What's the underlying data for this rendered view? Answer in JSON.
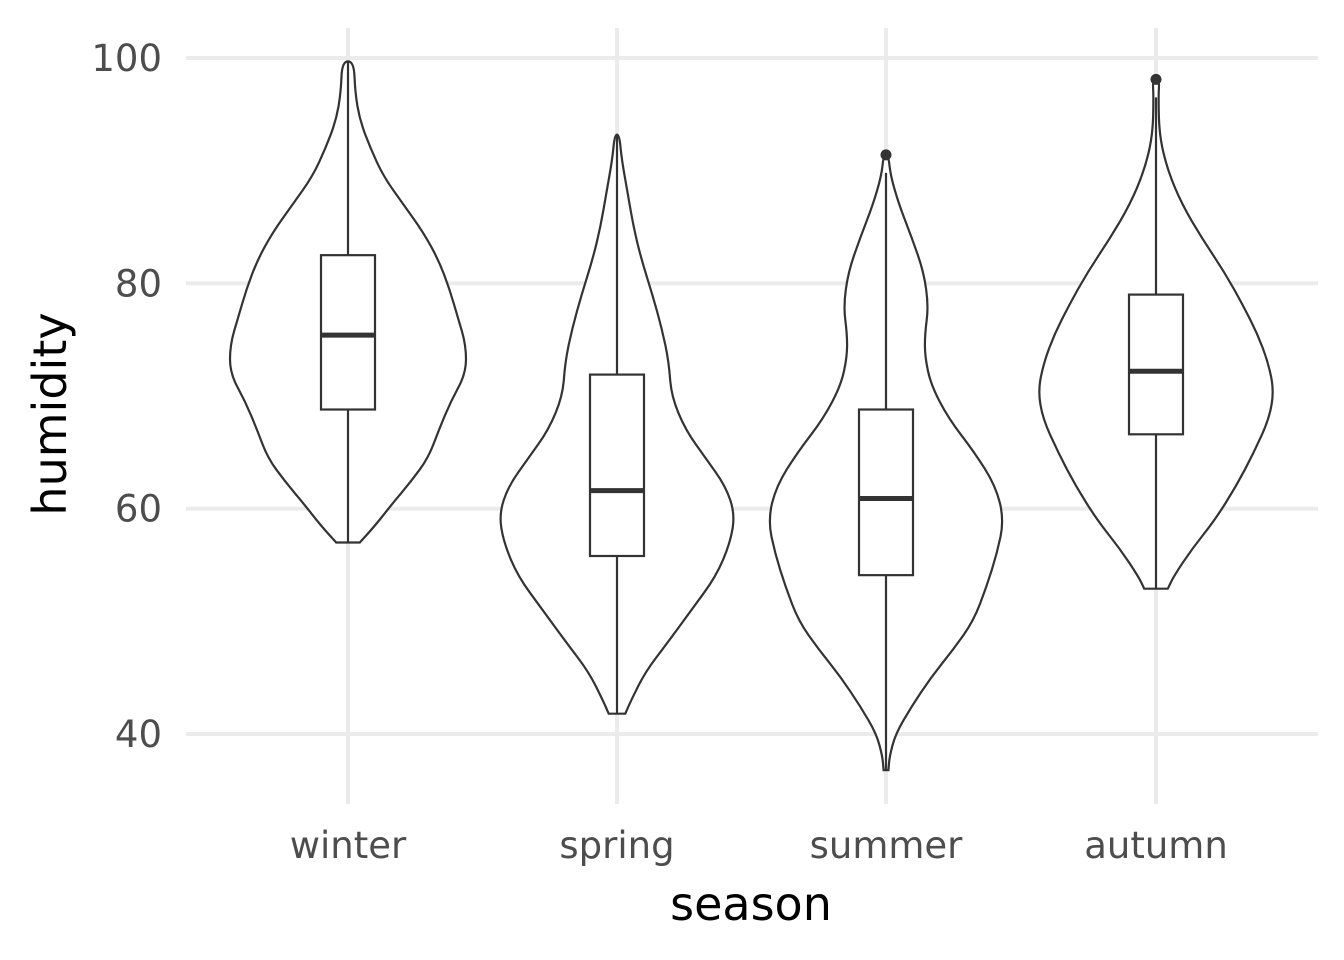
{
  "chart_data": {
    "type": "violin",
    "xlabel": "season",
    "ylabel": "humidity",
    "categories": [
      "winter",
      "spring",
      "summer",
      "autumn"
    ],
    "ylim": [
      33.8,
      102.0
    ],
    "yticks": [
      40,
      60,
      80,
      100
    ],
    "grid": true,
    "legend": "none",
    "boxes": [
      {
        "category": "winter",
        "min": 57.0,
        "q1": 68.8,
        "median": 75.4,
        "q3": 82.5,
        "max": 99.7,
        "outliers": []
      },
      {
        "category": "spring",
        "min": 41.8,
        "q1": 55.8,
        "median": 61.6,
        "q3": 71.9,
        "max": 93.2,
        "outliers": []
      },
      {
        "category": "summer",
        "min": 36.8,
        "q1": 54.1,
        "median": 60.9,
        "q3": 68.8,
        "max": 89.8,
        "outliers": [
          91.4
        ]
      },
      {
        "category": "autumn",
        "min": 52.9,
        "q1": 66.6,
        "median": 72.2,
        "q3": 79.0,
        "max": 96.5,
        "outliers": [
          98.1
        ]
      }
    ],
    "density_profiles": [
      {
        "category": "winter",
        "profile": [
          [
            57.0,
            0.1
          ],
          [
            58.5,
            0.23
          ],
          [
            60.5,
            0.38
          ],
          [
            62.5,
            0.54
          ],
          [
            64.5,
            0.68
          ],
          [
            67.0,
            0.77
          ],
          [
            69.5,
            0.87
          ],
          [
            72.0,
            1.0
          ],
          [
            74.5,
            1.0
          ],
          [
            77.0,
            0.93
          ],
          [
            79.5,
            0.86
          ],
          [
            82.0,
            0.77
          ],
          [
            84.5,
            0.64
          ],
          [
            87.0,
            0.47
          ],
          [
            89.5,
            0.3
          ],
          [
            92.0,
            0.19
          ],
          [
            94.5,
            0.1
          ],
          [
            97.0,
            0.06
          ],
          [
            99.7,
            0.05
          ]
        ]
      },
      {
        "category": "spring",
        "profile": [
          [
            41.8,
            0.07
          ],
          [
            43.0,
            0.12
          ],
          [
            45.5,
            0.24
          ],
          [
            48.0,
            0.42
          ],
          [
            51.0,
            0.63
          ],
          [
            54.0,
            0.84
          ],
          [
            57.0,
            0.96
          ],
          [
            59.5,
            1.0
          ],
          [
            62.0,
            0.92
          ],
          [
            64.5,
            0.75
          ],
          [
            67.0,
            0.58
          ],
          [
            70.0,
            0.46
          ],
          [
            73.0,
            0.44
          ],
          [
            76.0,
            0.38
          ],
          [
            79.0,
            0.3
          ],
          [
            82.0,
            0.21
          ],
          [
            85.0,
            0.14
          ],
          [
            88.0,
            0.09
          ],
          [
            91.0,
            0.04
          ],
          [
            93.2,
            0.02
          ]
        ]
      },
      {
        "category": "summer",
        "profile": [
          [
            36.8,
            0.02
          ],
          [
            38.0,
            0.03
          ],
          [
            40.0,
            0.08
          ],
          [
            42.5,
            0.22
          ],
          [
            45.0,
            0.38
          ],
          [
            47.5,
            0.57
          ],
          [
            50.0,
            0.74
          ],
          [
            53.0,
            0.85
          ],
          [
            56.0,
            0.94
          ],
          [
            59.0,
            1.0
          ],
          [
            62.0,
            0.93
          ],
          [
            65.0,
            0.75
          ],
          [
            68.0,
            0.53
          ],
          [
            71.0,
            0.38
          ],
          [
            73.5,
            0.33
          ],
          [
            75.5,
            0.33
          ],
          [
            78.0,
            0.36
          ],
          [
            81.0,
            0.32
          ],
          [
            84.0,
            0.22
          ],
          [
            87.0,
            0.11
          ],
          [
            89.5,
            0.04
          ],
          [
            91.4,
            0.02
          ]
        ]
      },
      {
        "category": "autumn",
        "profile": [
          [
            52.9,
            0.1
          ],
          [
            54.0,
            0.15
          ],
          [
            56.5,
            0.31
          ],
          [
            59.0,
            0.5
          ],
          [
            62.0,
            0.68
          ],
          [
            65.0,
            0.83
          ],
          [
            68.0,
            0.96
          ],
          [
            70.5,
            1.0
          ],
          [
            73.0,
            0.95
          ],
          [
            75.5,
            0.86
          ],
          [
            78.0,
            0.74
          ],
          [
            81.0,
            0.58
          ],
          [
            84.0,
            0.39
          ],
          [
            87.0,
            0.22
          ],
          [
            90.0,
            0.1
          ],
          [
            93.0,
            0.03
          ],
          [
            96.5,
            0.02
          ],
          [
            98.1,
            0.03
          ]
        ]
      }
    ]
  }
}
